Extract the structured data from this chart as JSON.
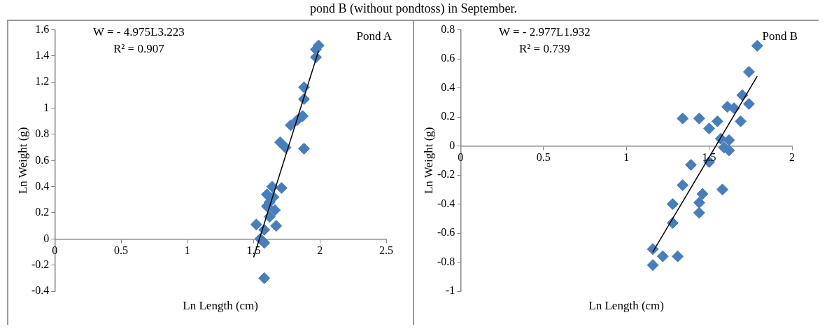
{
  "chart_data": [
    {
      "type": "scatter",
      "title": "pond B (without pondtoss) in September.",
      "xlabel": "Ln Length (cm)",
      "ylabel": "Ln Weight (g)",
      "annotations": [
        "W = - 4.975L3.223",
        "R² = 0.907",
        "Pond A"
      ],
      "xlim": [
        0,
        2.5
      ],
      "xticks": [
        0,
        0.5,
        1,
        1.5,
        2,
        2.5
      ],
      "ylim": [
        -0.4,
        1.6
      ],
      "yticks": [
        -0.4,
        -0.2,
        0,
        0.2,
        0.4,
        0.6,
        0.8,
        1,
        1.2,
        1.4,
        1.6
      ],
      "grid": false,
      "legend": false,
      "marker": "diamond",
      "series": [
        {
          "type": "scatter",
          "color": "#4a7ebb",
          "x": [
            1.99,
            1.97,
            1.97,
            1.88,
            1.88,
            1.87,
            1.83,
            1.78,
            1.7,
            1.74,
            1.88,
            1.64,
            1.71,
            1.6,
            1.65,
            1.62,
            1.6,
            1.66,
            1.62,
            1.52,
            1.67,
            1.58,
            1.55,
            1.58,
            1.58
          ],
          "values": [
            1.48,
            1.45,
            1.39,
            1.16,
            1.07,
            0.94,
            0.91,
            0.87,
            0.74,
            0.7,
            0.69,
            0.4,
            0.39,
            0.34,
            0.32,
            0.28,
            0.25,
            0.22,
            0.17,
            0.11,
            0.1,
            0.07,
            0.0,
            -0.03,
            -0.3
          ]
        },
        {
          "type": "line",
          "color": "#000000",
          "marker": "none",
          "x": [
            1.5,
            1.99
          ],
          "values": [
            -0.14,
            1.44
          ]
        }
      ]
    },
    {
      "type": "scatter",
      "xlabel": "Ln Length (cm)",
      "ylabel": "Ln Weight (g)",
      "annotations": [
        "W = - 2.977L1.932",
        "R² = 0.739",
        "Pond B"
      ],
      "xlim": [
        0,
        2
      ],
      "xticks": [
        0,
        0.5,
        1,
        1.5,
        2
      ],
      "ylim": [
        -1,
        0.8
      ],
      "yticks": [
        -1,
        -0.8,
        -0.6,
        -0.4,
        -0.2,
        0,
        0.2,
        0.4,
        0.6,
        0.8
      ],
      "grid": false,
      "legend": false,
      "marker": "diamond",
      "series": [
        {
          "type": "scatter",
          "color": "#4a7ebb",
          "x": [
            1.79,
            1.74,
            1.7,
            1.74,
            1.61,
            1.65,
            1.69,
            1.34,
            1.44,
            1.55,
            1.5,
            1.57,
            1.62,
            1.59,
            1.62,
            1.39,
            1.5,
            1.34,
            1.58,
            1.46,
            1.44,
            1.28,
            1.44,
            1.28,
            1.16,
            1.22,
            1.31,
            1.16
          ],
          "values": [
            0.69,
            0.51,
            0.35,
            0.29,
            0.27,
            0.26,
            0.17,
            0.19,
            0.19,
            0.17,
            0.12,
            0.05,
            0.04,
            -0.01,
            -0.03,
            -0.13,
            -0.11,
            -0.27,
            -0.3,
            -0.33,
            -0.39,
            -0.4,
            -0.46,
            -0.53,
            -0.71,
            -0.76,
            -0.76,
            -0.82
          ]
        },
        {
          "type": "line",
          "color": "#000000",
          "marker": "none",
          "x": [
            1.16,
            1.79
          ],
          "values": [
            -0.73,
            0.48
          ]
        }
      ]
    }
  ]
}
